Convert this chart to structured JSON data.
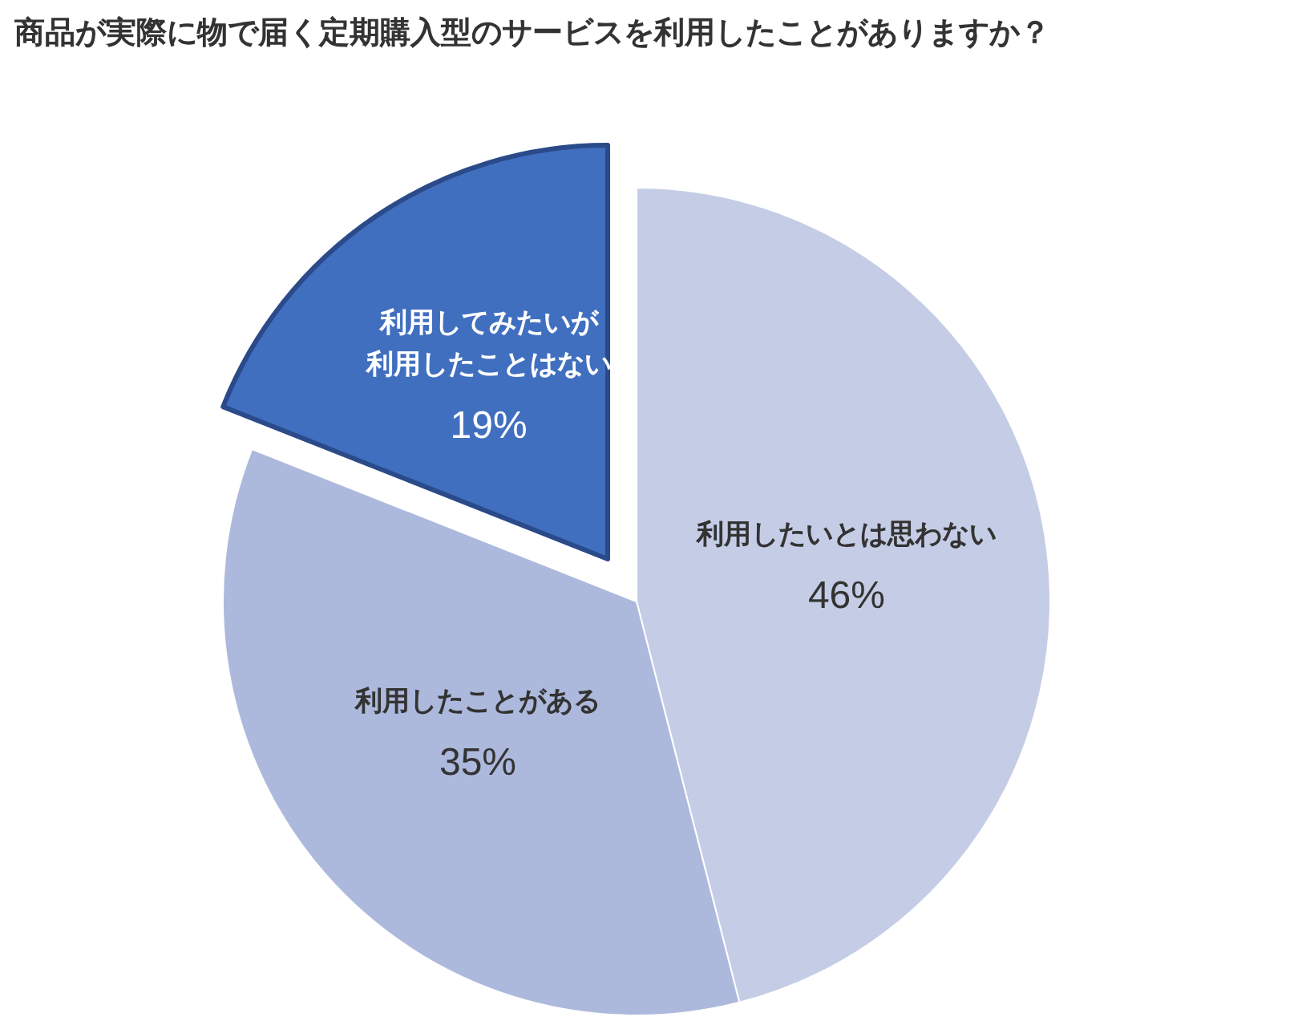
{
  "chart_data": {
    "type": "pie",
    "title": "商品が実際に物で届く定期購入型のサービスを利用したことがありますか？",
    "categories": [
      "利用したいとは思わない",
      "利用したことがある",
      "利用してみたいが利用したことはない"
    ],
    "values": [
      46,
      35,
      19
    ],
    "colors": [
      "#c5cde6",
      "#adb9dc",
      "#416fbf"
    ],
    "value_labels": [
      "46%",
      "35%",
      "19%"
    ],
    "legend": false
  }
}
